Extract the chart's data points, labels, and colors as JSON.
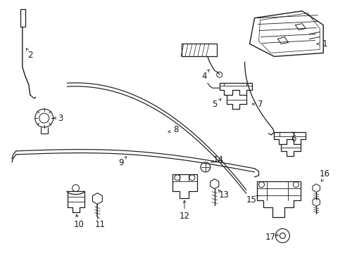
{
  "background_color": "#ffffff",
  "line_color": "#1a1a1a",
  "font_size": 8.5,
  "figsize": [
    4.9,
    3.6
  ],
  "dpi": 100
}
